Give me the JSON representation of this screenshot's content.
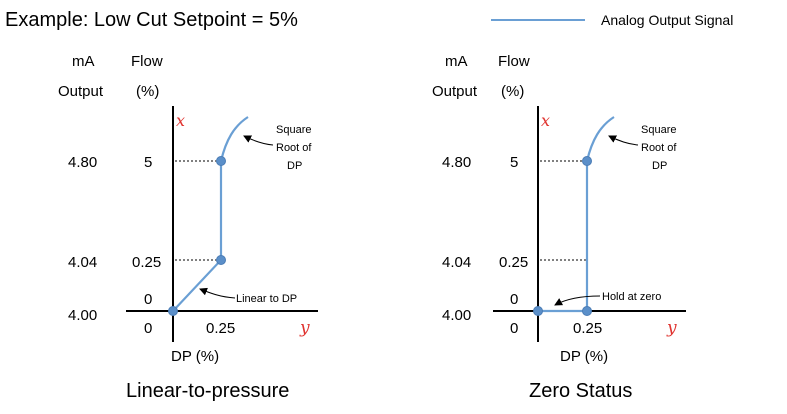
{
  "title": "Example: Low Cut Setpoint = 5%",
  "legend": {
    "label": "Analog Output Signal",
    "color": "#6a9fd4"
  },
  "axis_headers": {
    "ma": "mA",
    "output": "Output",
    "flow": "Flow",
    "percent": "(%)"
  },
  "axis_var_vertical": "x",
  "axis_var_horizontal": "y",
  "xlabel": "DP (%)",
  "ma_ticks": [
    "4.80",
    "4.04",
    "4.00"
  ],
  "flow_ticks": [
    "5",
    "0.25",
    "0",
    "0"
  ],
  "dp_tick": "0.25",
  "panels": [
    {
      "caption": "Linear-to-pressure",
      "annotation_top": [
        "Square",
        "Root of",
        "DP"
      ],
      "annotation_bottom": "Linear to DP"
    },
    {
      "caption": "Zero Status",
      "annotation_top": [
        "Square",
        "Root of",
        "DP"
      ],
      "annotation_bottom": "Hold at zero"
    }
  ],
  "colors": {
    "signal": "#6a9fd4",
    "point": "#5b8fc9",
    "axis_var": "#e0332f"
  }
}
